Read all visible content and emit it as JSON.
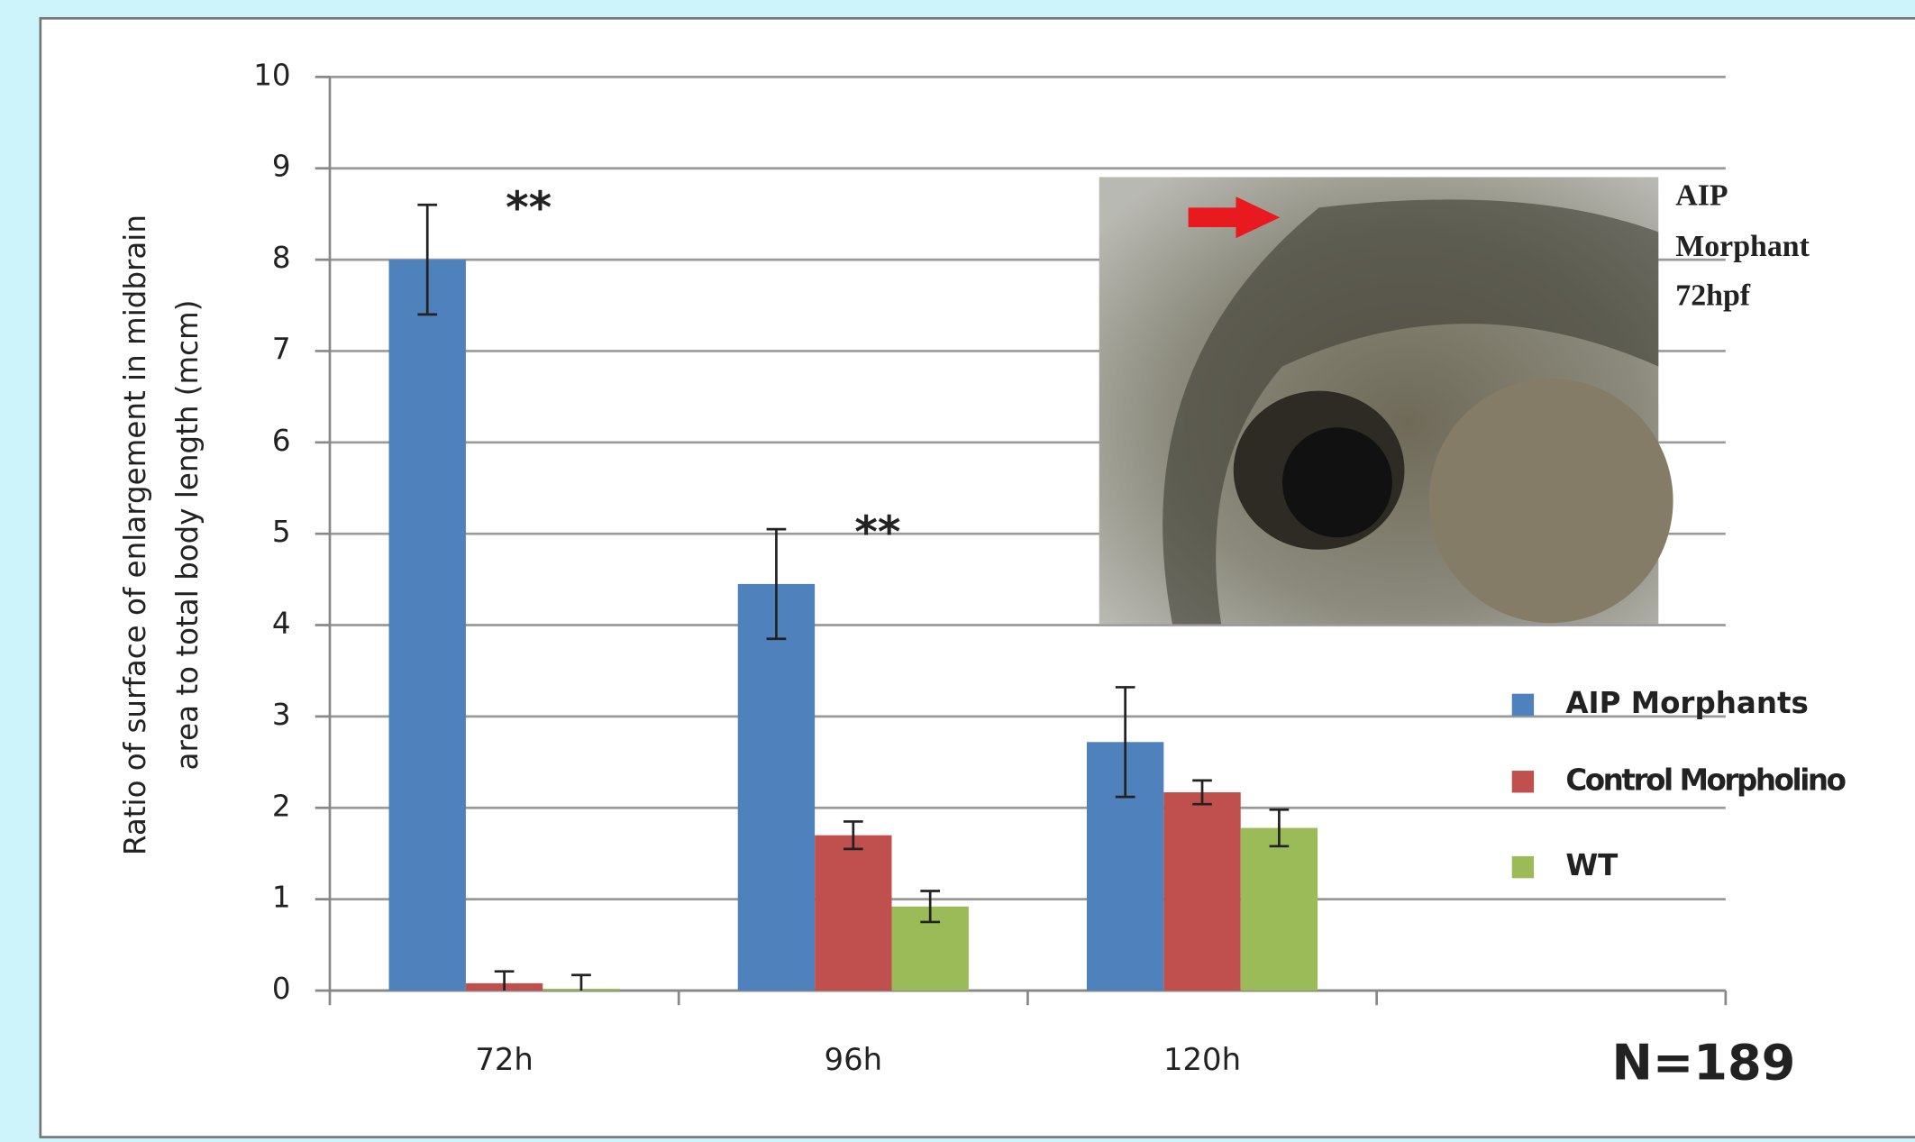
{
  "chart_data": {
    "type": "bar",
    "y_axis_label": [
      "Ratio of surface of enlargement in midbrain",
      "area to total body length (mcm)"
    ],
    "categories": [
      "72h",
      "96h",
      "120h",
      null
    ],
    "series": [
      {
        "name": "AIP Morphants",
        "color": "#4f81bd",
        "values": [
          8.0,
          4.45,
          2.72,
          null
        ],
        "errors": [
          0.6,
          0.6,
          0.6,
          null
        ]
      },
      {
        "name": "Control Morpholino",
        "color": "#c0504d",
        "values": [
          0.08,
          1.7,
          2.17,
          null
        ],
        "errors": [
          0.13,
          0.15,
          0.13,
          null
        ]
      },
      {
        "name": "WT",
        "color": "#9bbb59",
        "values": [
          0.02,
          0.92,
          1.78,
          null
        ],
        "errors": [
          0.15,
          0.17,
          0.2,
          null
        ]
      }
    ],
    "annotations": [
      "**",
      "**"
    ],
    "inset_caption": [
      "AIP",
      "Morphant",
      "72hpf"
    ],
    "sample_size": "N=189",
    "ylim": [
      0,
      10
    ],
    "yticks": [
      0,
      1,
      2,
      3,
      4,
      5,
      6,
      7,
      8,
      9,
      10
    ],
    "grid": true,
    "legend": "right"
  }
}
